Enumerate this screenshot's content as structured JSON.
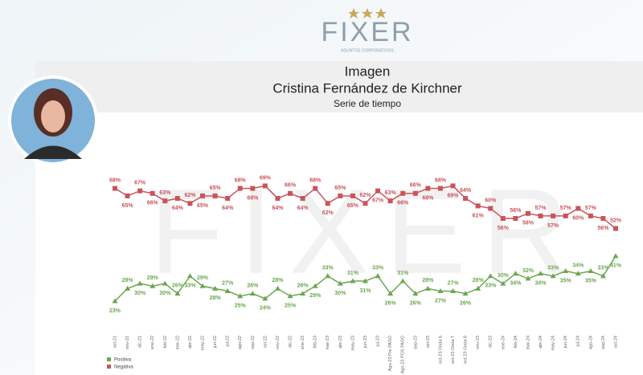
{
  "header": {
    "logo": "FIXER",
    "logo_subtitle": "ASUNTOS CORPORATIVOS"
  },
  "chart_data": {
    "type": "line",
    "title": "Imagen",
    "subtitle": "Cristina Fernández de Kirchner",
    "caption": "Serie de tiempo",
    "categories": [
      "oct-21",
      "nov-21",
      "dic-21",
      "ene-22",
      "feb-22",
      "mar-22",
      "abr-22",
      "may-22",
      "jun-22",
      "jul-22",
      "ago-22",
      "sep-22",
      "oct-22",
      "nov-22",
      "dic-22",
      "ene-23",
      "feb-23",
      "mar-23",
      "abr-23",
      "may-23",
      "jun-23",
      "jul-23",
      "Ago-23 Pre PASO",
      "Ago-23 POS PASO",
      "sep-23",
      "oct-23",
      "oct-23 Onda 6",
      "oct-23 Onda 7",
      "oct-23 Onda 8",
      "nov-23",
      "dic-23",
      "ene-24",
      "feb-24",
      "mar-24",
      "abr-24",
      "may-24",
      "jun-24",
      "jul-24",
      "ago-24",
      "sep-24",
      "oct-24"
    ],
    "series": [
      {
        "name": "Positiva",
        "color": "#6aa84f",
        "values": [
          23,
          28,
          30,
          29,
          30,
          26,
          33,
          29,
          28,
          27,
          25,
          26,
          24,
          28,
          25,
          26,
          29,
          33,
          30,
          31,
          31,
          33,
          26,
          31,
          26,
          28,
          27,
          27,
          26,
          28,
          33,
          30,
          34,
          32,
          34,
          33,
          35,
          34,
          35,
          33,
          41
        ],
        "value_labels": [
          "23%",
          "28%",
          "30%",
          "29%",
          "30%",
          "26%",
          "33%",
          "29%",
          "28%",
          "27%",
          "25%",
          "26%",
          "24%",
          "28%",
          "25%",
          "26%",
          "29%",
          "33%",
          "30%",
          "31%",
          "31%",
          "33%",
          "26%",
          "31%",
          "26%",
          "28%",
          "27%",
          "27%",
          "26%",
          "28%",
          "33%",
          "30%",
          "34%",
          "32%",
          "34%",
          "33%",
          "35%",
          "34%",
          "35%",
          "33%",
          "41%"
        ]
      },
      {
        "name": "Negativa",
        "color": "#c9545a",
        "values": [
          68,
          65,
          67,
          66,
          63,
          64,
          62,
          65,
          65,
          64,
          68,
          68,
          69,
          64,
          66,
          64,
          68,
          62,
          65,
          65,
          62,
          67,
          63,
          66,
          66,
          68,
          68,
          69,
          64,
          61,
          60,
          56,
          56,
          58,
          57,
          57,
          57,
          60,
          57,
          56,
          52
        ],
        "value_labels": [
          "68%",
          "65%",
          "67%",
          "66%",
          "63%",
          "64%",
          "62%",
          "65%",
          "65%",
          "64%",
          "68%",
          "68%",
          "69%",
          "64%",
          "66%",
          "64%",
          "68%",
          "62%",
          "65%",
          "65%",
          "62%",
          "67%",
          "63%",
          "66%",
          "66%",
          "68%",
          "68%",
          "69%",
          "64%",
          "61%",
          "60%",
          "56%",
          "56%",
          "58%",
          "57%",
          "57%",
          "57%",
          "60%",
          "57%",
          "56%",
          "52%"
        ]
      }
    ]
  }
}
